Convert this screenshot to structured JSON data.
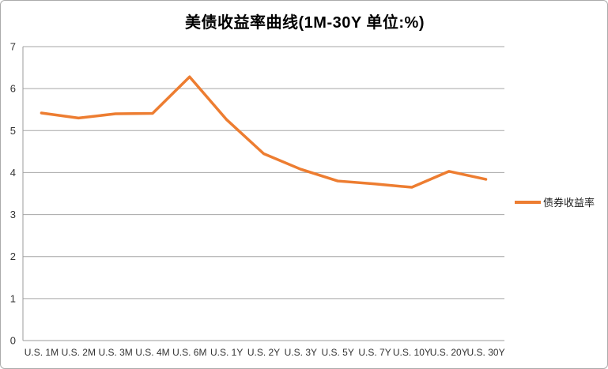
{
  "title": "美债收益率曲线(1M-30Y 单位:%)",
  "legend": {
    "label": "债券收益率"
  },
  "colors": {
    "series": "#ED7D31",
    "gridline": "#A6A6A6",
    "axis_line": "#9B9B9B",
    "axis_text": "#333333",
    "frame_border": "#ABABAB",
    "background": "#FFFFFF",
    "title_text": "#000000"
  },
  "chart_data": {
    "type": "line",
    "title": "美债收益率曲线(1M-30Y 单位:%)",
    "categories": [
      "U.S. 1M",
      "U.S. 2M",
      "U.S. 3M",
      "U.S. 4M",
      "U.S. 6M",
      "U.S. 1Y",
      "U.S. 2Y",
      "U.S. 3Y",
      "U.S. 5Y",
      "U.S. 7Y",
      "U.S. 10Y",
      "U.S. 20Y",
      "U.S. 30Y"
    ],
    "series": [
      {
        "name": "债券收益率",
        "values": [
          5.42,
          5.3,
          5.4,
          5.41,
          6.28,
          5.26,
          4.45,
          4.08,
          3.8,
          3.73,
          3.65,
          4.03,
          3.84
        ]
      }
    ],
    "xlabel": "",
    "ylabel": "",
    "ylim": [
      0,
      7
    ],
    "yticks": [
      0,
      1,
      2,
      3,
      4,
      5,
      6,
      7
    ],
    "grid": true,
    "legend_position": "right"
  }
}
